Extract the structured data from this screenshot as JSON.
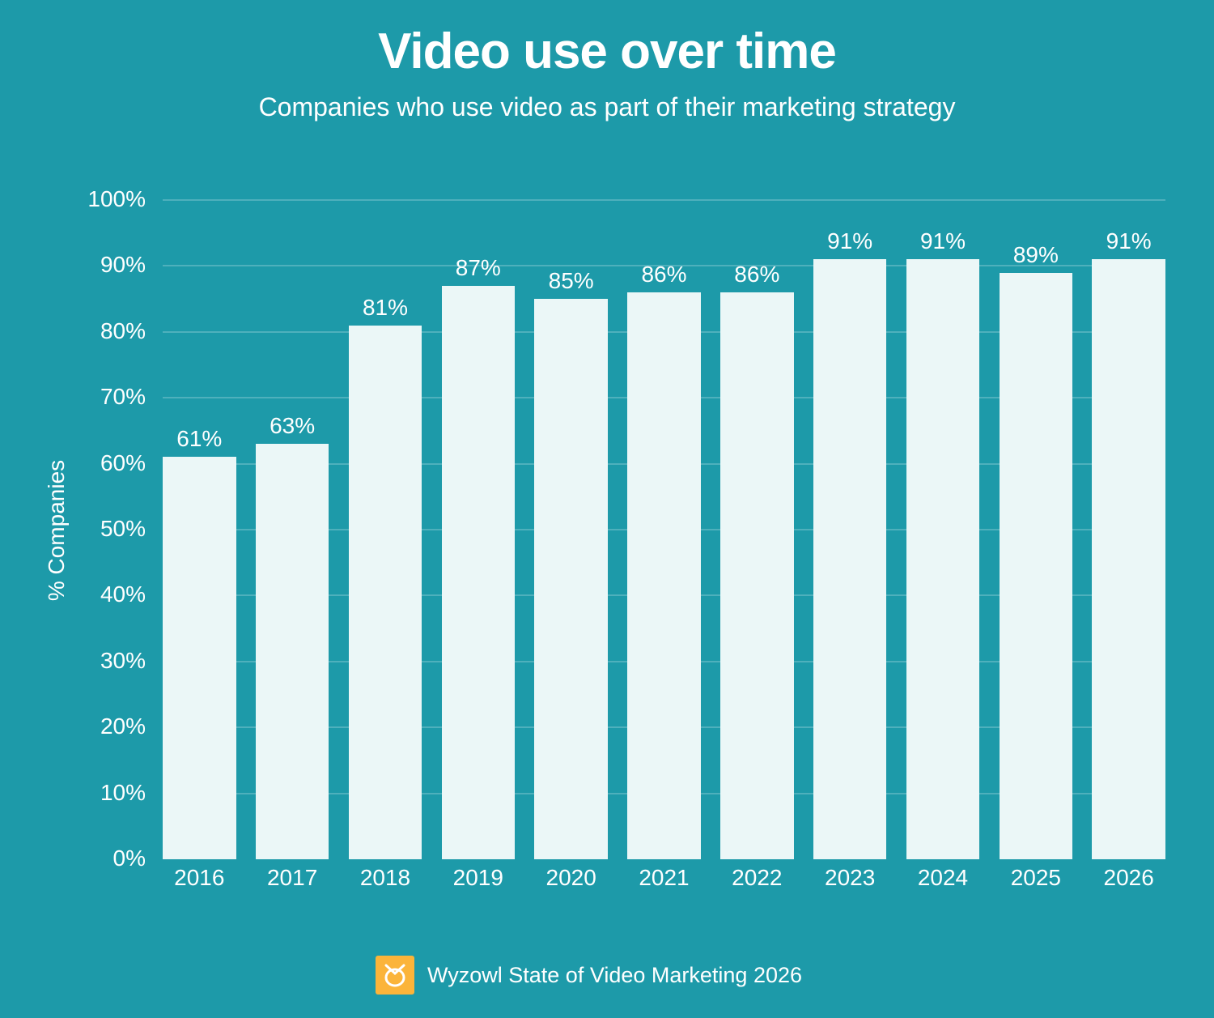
{
  "header": {
    "title": "Video use over time",
    "subtitle": "Companies who use video as part of their marketing strategy"
  },
  "colors": {
    "background": "#1d9aa9",
    "bar": "#ebf7f7",
    "text": "#ffffff",
    "logo": "#fbb43a"
  },
  "footer": {
    "logo_icon": "wyzowl-owl-logo-icon",
    "text": "Wyzowl State of Video Marketing 2026"
  },
  "chart_data": {
    "type": "bar",
    "title": "Video use over time",
    "subtitle": "Companies who use video as part of their marketing strategy",
    "xlabel": "",
    "ylabel": "% Companies",
    "ylim": [
      0,
      100
    ],
    "yticks": [
      "0%",
      "10%",
      "20%",
      "30%",
      "40%",
      "50%",
      "60%",
      "70%",
      "80%",
      "90%",
      "100%"
    ],
    "grid": true,
    "legend": null,
    "categories": [
      "2016",
      "2017",
      "2018",
      "2019",
      "2020",
      "2021",
      "2022",
      "2023",
      "2024",
      "2025",
      "2026"
    ],
    "values": [
      61,
      63,
      81,
      87,
      85,
      86,
      86,
      91,
      91,
      89,
      91
    ],
    "data_labels": [
      "61%",
      "63%",
      "81%",
      "87%",
      "85%",
      "86%",
      "86%",
      "91%",
      "91%",
      "89%",
      "91%"
    ],
    "source": "Wyzowl State of Video Marketing 2026"
  }
}
